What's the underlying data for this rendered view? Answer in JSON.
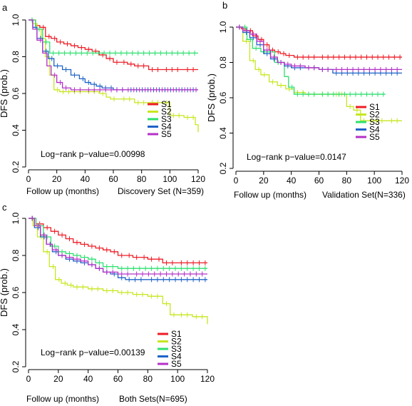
{
  "chart_data": [
    {
      "type": "line",
      "panel_label": "a",
      "xlabel": "Follow up (months)",
      "subtitle": "Discovery Set (N=359)",
      "ylabel": "DFS (prob.)",
      "xlim": [
        0,
        120
      ],
      "ylim": [
        0.2,
        1.0
      ],
      "xticks": [
        0,
        20,
        40,
        60,
        80,
        100,
        120
      ],
      "yticks": [
        0.2,
        0.4,
        0.6,
        0.8,
        1.0
      ],
      "annotation": "Log−rank p−value=0.00998",
      "legend_position": "bottom-right",
      "series": [
        {
          "name": "S1",
          "color": "#ee1c25",
          "x": [
            0,
            5,
            8,
            12,
            16,
            20,
            25,
            30,
            35,
            40,
            45,
            50,
            55,
            60,
            65,
            70,
            75,
            85,
            95,
            110,
            120
          ],
          "y": [
            1.0,
            0.97,
            0.96,
            0.91,
            0.9,
            0.88,
            0.87,
            0.86,
            0.85,
            0.84,
            0.83,
            0.81,
            0.79,
            0.77,
            0.77,
            0.76,
            0.75,
            0.73,
            0.73,
            0.73,
            0.73
          ]
        },
        {
          "name": "S2",
          "color": "#c8e620",
          "x": [
            0,
            3,
            6,
            9,
            12,
            15,
            18,
            22,
            30,
            40,
            50,
            55,
            58,
            65,
            75,
            85,
            95,
            100,
            110,
            118,
            120
          ],
          "y": [
            1.0,
            0.98,
            0.95,
            0.9,
            0.8,
            0.7,
            0.62,
            0.61,
            0.61,
            0.61,
            0.6,
            0.58,
            0.57,
            0.57,
            0.55,
            0.55,
            0.55,
            0.48,
            0.47,
            0.43,
            0.39
          ]
        },
        {
          "name": "S3",
          "color": "#2de06e",
          "x": [
            0,
            5,
            10,
            15,
            120
          ],
          "y": [
            1.0,
            0.95,
            0.88,
            0.82,
            0.82
          ]
        },
        {
          "name": "S4",
          "color": "#1e63c8",
          "x": [
            0,
            3,
            6,
            10,
            14,
            18,
            24,
            30,
            36,
            40,
            44,
            48,
            52,
            60,
            70,
            120
          ],
          "y": [
            1.0,
            0.96,
            0.9,
            0.83,
            0.79,
            0.75,
            0.73,
            0.7,
            0.68,
            0.66,
            0.65,
            0.64,
            0.63,
            0.62,
            0.62,
            0.62
          ]
        },
        {
          "name": "S5",
          "color": "#b530c8",
          "x": [
            0,
            3,
            6,
            10,
            13,
            16,
            20,
            24,
            30,
            40,
            60,
            80,
            120
          ],
          "y": [
            1.0,
            0.95,
            0.89,
            0.82,
            0.75,
            0.7,
            0.66,
            0.63,
            0.62,
            0.62,
            0.62,
            0.62,
            0.62
          ]
        }
      ]
    },
    {
      "type": "line",
      "panel_label": "b",
      "xlabel": "Follow up (months)",
      "subtitle": "Validation Set(N=336)",
      "ylabel": "DFS (prob.)",
      "xlim": [
        0,
        120
      ],
      "ylim": [
        0.2,
        1.0
      ],
      "xticks": [
        0,
        20,
        40,
        60,
        80,
        100,
        120
      ],
      "yticks": [
        0.2,
        0.4,
        0.6,
        0.8,
        1.0
      ],
      "annotation": "Log−rank p−value=0.0147",
      "legend_position": "bottom-right",
      "series": [
        {
          "name": "S1",
          "color": "#ee1c25",
          "x": [
            0,
            4,
            8,
            12,
            16,
            20,
            24,
            28,
            32,
            36,
            42,
            50,
            60,
            120
          ],
          "y": [
            1.0,
            0.99,
            0.98,
            0.95,
            0.93,
            0.9,
            0.87,
            0.86,
            0.85,
            0.84,
            0.83,
            0.83,
            0.83,
            0.83
          ]
        },
        {
          "name": "S2",
          "color": "#c8e620",
          "x": [
            0,
            5,
            10,
            14,
            18,
            24,
            30,
            36,
            42,
            50,
            60,
            70,
            80,
            85,
            90,
            95,
            110,
            120
          ],
          "y": [
            1.0,
            0.92,
            0.81,
            0.76,
            0.73,
            0.69,
            0.67,
            0.65,
            0.63,
            0.62,
            0.62,
            0.62,
            0.55,
            0.53,
            0.47,
            0.47,
            0.47,
            0.47
          ]
        },
        {
          "name": "S3",
          "color": "#2de06e",
          "x": [
            0,
            8,
            12,
            18,
            22,
            28,
            35,
            38,
            42,
            60,
            80,
            100,
            108
          ],
          "y": [
            1.0,
            0.93,
            0.88,
            0.86,
            0.86,
            0.8,
            0.72,
            0.66,
            0.62,
            0.62,
            0.62,
            0.62,
            0.62
          ]
        },
        {
          "name": "S4",
          "color": "#1e63c8",
          "x": [
            0,
            5,
            10,
            15,
            20,
            25,
            30,
            35,
            40,
            50,
            60,
            70,
            120
          ],
          "y": [
            1.0,
            0.97,
            0.94,
            0.9,
            0.85,
            0.82,
            0.8,
            0.78,
            0.77,
            0.77,
            0.76,
            0.74,
            0.74
          ]
        },
        {
          "name": "S5",
          "color": "#b530c8",
          "x": [
            0,
            5,
            10,
            15,
            20,
            25,
            30,
            35,
            40,
            50,
            60,
            70,
            120
          ],
          "y": [
            1.0,
            0.98,
            0.96,
            0.92,
            0.87,
            0.83,
            0.8,
            0.79,
            0.78,
            0.77,
            0.76,
            0.76,
            0.76
          ]
        }
      ]
    },
    {
      "type": "line",
      "panel_label": "c",
      "xlabel": "Follow up (months)",
      "subtitle": "Both Sets(N=695)",
      "ylabel": "DFS (prob.)",
      "xlim": [
        0,
        120
      ],
      "ylim": [
        0.2,
        1.0
      ],
      "xticks": [
        0,
        20,
        40,
        60,
        80,
        100,
        120
      ],
      "yticks": [
        0.2,
        0.4,
        0.6,
        0.8,
        1.0
      ],
      "annotation": "Log−rank p−value=0.00139",
      "legend_position": "bottom-right",
      "series": [
        {
          "name": "S1",
          "color": "#ee1c25",
          "x": [
            0,
            5,
            10,
            15,
            20,
            25,
            30,
            35,
            40,
            45,
            50,
            55,
            60,
            65,
            70,
            75,
            80,
            85,
            90,
            100,
            120
          ],
          "y": [
            1.0,
            0.97,
            0.95,
            0.93,
            0.91,
            0.89,
            0.87,
            0.86,
            0.85,
            0.84,
            0.83,
            0.82,
            0.8,
            0.8,
            0.79,
            0.79,
            0.78,
            0.78,
            0.76,
            0.76,
            0.76
          ]
        },
        {
          "name": "S2",
          "color": "#c8e620",
          "x": [
            0,
            3,
            6,
            10,
            14,
            18,
            22,
            26,
            30,
            40,
            50,
            60,
            70,
            80,
            90,
            95,
            100,
            110,
            118,
            120
          ],
          "y": [
            1.0,
            0.96,
            0.9,
            0.82,
            0.74,
            0.67,
            0.65,
            0.64,
            0.63,
            0.62,
            0.61,
            0.6,
            0.59,
            0.58,
            0.54,
            0.48,
            0.48,
            0.47,
            0.47,
            0.43
          ]
        },
        {
          "name": "S3",
          "color": "#2de06e",
          "x": [
            0,
            5,
            10,
            15,
            20,
            25,
            30,
            35,
            40,
            45,
            50,
            60,
            80,
            120
          ],
          "y": [
            1.0,
            0.96,
            0.9,
            0.85,
            0.82,
            0.81,
            0.8,
            0.79,
            0.78,
            0.76,
            0.74,
            0.73,
            0.73,
            0.73
          ]
        },
        {
          "name": "S4",
          "color": "#1e63c8",
          "x": [
            0,
            4,
            8,
            12,
            16,
            20,
            25,
            30,
            35,
            40,
            45,
            50,
            55,
            60,
            65,
            80,
            120
          ],
          "y": [
            1.0,
            0.95,
            0.9,
            0.86,
            0.82,
            0.8,
            0.78,
            0.77,
            0.76,
            0.75,
            0.73,
            0.71,
            0.7,
            0.68,
            0.67,
            0.67,
            0.67
          ]
        },
        {
          "name": "S5",
          "color": "#b530c8",
          "x": [
            0,
            4,
            8,
            12,
            16,
            20,
            25,
            30,
            35,
            40,
            45,
            50,
            60,
            70,
            120
          ],
          "y": [
            1.0,
            0.96,
            0.91,
            0.86,
            0.83,
            0.8,
            0.79,
            0.78,
            0.77,
            0.75,
            0.73,
            0.71,
            0.7,
            0.7,
            0.7
          ]
        }
      ]
    }
  ]
}
